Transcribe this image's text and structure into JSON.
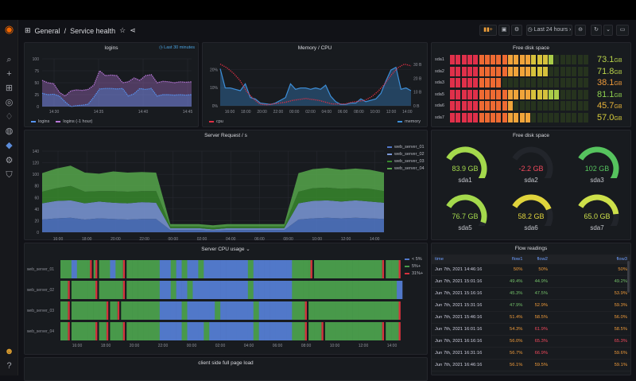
{
  "header": {
    "folder": "General",
    "separator": "/",
    "title": "Service health",
    "time_range": "Last 24 hours"
  },
  "sidebar": {
    "icons": [
      "grafana-logo-icon",
      "search-icon",
      "plus-icon",
      "dashboards-icon",
      "explore-icon",
      "alert-bell-icon",
      "globe-icon",
      "plugin-icon",
      "gear-icon",
      "shield-icon",
      "user-avatar-icon",
      "help-icon"
    ]
  },
  "logins": {
    "title": "logins",
    "time_override": "Last 30 minutes",
    "yticks": [
      "0",
      "25",
      "50",
      "75",
      "100"
    ],
    "xticks": [
      "14:30",
      "14:35",
      "14:40",
      "14:45"
    ],
    "legend": [
      "logins",
      "logins (-1 hour)"
    ],
    "series_logins": [
      28,
      25,
      26,
      22,
      10,
      0,
      2,
      3,
      5,
      20,
      37,
      38,
      38,
      37,
      38,
      22,
      27,
      38,
      36,
      38,
      22,
      25,
      25,
      24,
      25,
      24,
      25
    ],
    "series_logins_1h": [
      55,
      50,
      48,
      30,
      22,
      33,
      35,
      34,
      36,
      45,
      75,
      65,
      66,
      65,
      50,
      52,
      60,
      55,
      65,
      67,
      50,
      53,
      52,
      50,
      52,
      51,
      52
    ]
  },
  "memcpu": {
    "title": "Memory / CPU",
    "yticks_left": [
      "0%",
      "10%",
      "20%"
    ],
    "yticks_right": [
      "0 B",
      "10 B",
      "20 B",
      "30 B"
    ],
    "xticks": [
      "16:00",
      "18:00",
      "20:00",
      "22:00",
      "00:00",
      "02:00",
      "04:00",
      "06:00",
      "08:00",
      "10:00",
      "12:00",
      "14:00"
    ],
    "legend_left": "cpu",
    "legend_right": "memory",
    "memory": [
      27,
      13,
      13,
      12,
      11,
      16,
      6,
      5,
      2,
      1.5,
      1,
      2,
      4,
      6,
      16,
      12,
      13,
      13,
      12,
      13,
      12,
      15,
      7,
      3,
      1,
      1,
      2,
      2,
      5,
      3,
      4,
      5,
      9,
      18,
      26,
      28,
      12,
      13,
      11
    ],
    "cpu": [
      23,
      21,
      18,
      14,
      8,
      4,
      1,
      0.5,
      1,
      1.5,
      2,
      3,
      3.5,
      4,
      3.5,
      3,
      2,
      1,
      1,
      1,
      2,
      2.5,
      3,
      5,
      8,
      12,
      17,
      21,
      23,
      22
    ]
  },
  "bargauge": {
    "title": "Free disk space",
    "max": 100,
    "items": [
      {
        "name": "sda1",
        "value": "73.1",
        "unit": "GB",
        "v": 73.1,
        "color": "#b8d24a"
      },
      {
        "name": "sda2",
        "value": "71.8",
        "unit": "GB",
        "v": 71.8,
        "color": "#b8d24a"
      },
      {
        "name": "sda3",
        "value": "38.1",
        "unit": "GB",
        "v": 38.1,
        "color": "#ee9a3a"
      },
      {
        "name": "sda5",
        "value": "81.1",
        "unit": "GB",
        "v": 81.1,
        "color": "#8fd14f"
      },
      {
        "name": "sda6",
        "value": "45.7",
        "unit": "GB",
        "v": 45.7,
        "color": "#e8b43a"
      },
      {
        "name": "sda7",
        "value": "57.0",
        "unit": "GB",
        "v": 57.0,
        "color": "#d6cc3c"
      }
    ]
  },
  "requests": {
    "title": "Server Request / s",
    "yticks": [
      "0",
      "20",
      "40",
      "60",
      "80",
      "100",
      "120",
      "140"
    ],
    "xticks": [
      "16:00",
      "18:00",
      "20:00",
      "22:00",
      "00:00",
      "02:00",
      "04:00",
      "06:00",
      "08:00",
      "10:00",
      "12:00",
      "14:00"
    ],
    "series": [
      {
        "name": "web_server_01",
        "color": "#5178c9",
        "values": [
          22,
          24,
          25,
          22,
          24,
          23,
          22,
          23,
          23,
          4,
          4,
          4,
          3,
          4,
          4,
          4,
          4,
          4,
          22,
          24,
          25,
          24,
          25,
          24,
          23
        ]
      },
      {
        "name": "web_server_02",
        "color": "#7c99d9",
        "values": [
          28,
          30,
          30,
          28,
          29,
          28,
          28,
          29,
          28,
          3,
          3,
          3,
          2,
          3,
          3,
          3,
          3,
          3,
          28,
          30,
          30,
          29,
          30,
          29,
          28
        ]
      },
      {
        "name": "web_server_03",
        "color": "#37872d",
        "values": [
          20,
          22,
          25,
          20,
          18,
          20,
          20,
          19,
          20,
          3,
          3,
          3,
          3,
          3,
          3,
          3,
          3,
          3,
          20,
          22,
          22,
          22,
          21,
          22,
          20
        ]
      },
      {
        "name": "web_server_04",
        "color": "#56a64b",
        "values": [
          32,
          34,
          35,
          33,
          30,
          34,
          33,
          33,
          32,
          4,
          4,
          4,
          4,
          4,
          4,
          4,
          4,
          4,
          32,
          33,
          34,
          33,
          34,
          33,
          32
        ]
      }
    ]
  },
  "gauges": {
    "title": "Free disk space",
    "max": 110,
    "items": [
      {
        "name": "sda1",
        "value": "83.9 GB",
        "v": 83.9,
        "color": "#a4d94c"
      },
      {
        "name": "sda2",
        "value": "-2.2 GB",
        "v": -2.2,
        "color": "#f2495c"
      },
      {
        "name": "sda3",
        "value": "102 GB",
        "v": 102,
        "color": "#56c45e"
      },
      {
        "name": "sda5",
        "value": "76.7 GB",
        "v": 76.7,
        "color": "#a4d94c"
      },
      {
        "name": "sda6",
        "value": "58.2 GB",
        "v": 58.2,
        "color": "#e0d43c"
      },
      {
        "name": "sda7",
        "value": "65.0 GB",
        "v": 65.0,
        "color": "#cde04a"
      }
    ]
  },
  "cpu_usage": {
    "title": "Server CPU usage",
    "legend": [
      {
        "label": "< 5%",
        "color": "#5178c9"
      },
      {
        "label": "5%+",
        "color": "#48994a"
      },
      {
        "label": "31%+",
        "color": "#d4323c"
      }
    ],
    "xticks": [
      "16:00",
      "18:00",
      "20:00",
      "22:00",
      "00:00",
      "02:00",
      "04:00",
      "06:00",
      "08:00",
      "10:00",
      "12:00",
      "14:00"
    ],
    "rows": [
      {
        "name": "web_server_01",
        "states": "GGBGGRRGGBGRGGGGGGBBGBGBBGBBBBBBBBGBBBBBBBGGGRGGGGGGGGGGGGRGGR"
      },
      {
        "name": "web_server_02",
        "states": "GRGGGGRGGGGRGGGGGGBBGBBGBBBBBBBBBBGBBBBBBBGGGGGGGGGGGGGGGGGGGB"
      },
      {
        "name": "web_server_03",
        "states": "GRGGGGGGRGRGGGGGGGBBBBGBBBBBGBBBBBBGBBBBBBGGRGGGGGGGGGGGGGGGGR"
      },
      {
        "name": "web_server_04",
        "states": "GRGGGGRGRGGRGGGGGGBBBBGBBBGBBBBBBBBGBBBBBBGGRGGRGGGGGGGGGGRGGR"
      }
    ]
  },
  "flow": {
    "title": "Flow readings",
    "columns": [
      "time",
      "flow1",
      "flow2",
      "flow3"
    ],
    "rows": [
      {
        "time": "Jun 7th, 2021 14:46:16",
        "f1": "50%",
        "c1": "#ee9a3a",
        "f2": "50%",
        "c2": "#ee9a3a",
        "f3": "50%",
        "c3": "#ee9a3a"
      },
      {
        "time": "Jun 7th, 2021 15:01:16",
        "f1": "49.4%",
        "c1": "#73bf69",
        "f2": "44.9%",
        "c2": "#73bf69",
        "f3": "49.2%",
        "c3": "#73bf69"
      },
      {
        "time": "Jun 7th, 2021 15:16:16",
        "f1": "45.3%",
        "c1": "#73bf69",
        "f2": "47.5%",
        "c2": "#73bf69",
        "f3": "53.9%",
        "c3": "#ee9a3a"
      },
      {
        "time": "Jun 7th, 2021 15:31:16",
        "f1": "47.9%",
        "c1": "#73bf69",
        "f2": "52.9%",
        "c2": "#ee9a3a",
        "f3": "59.3%",
        "c3": "#ee9a3a"
      },
      {
        "time": "Jun 7th, 2021 15:46:16",
        "f1": "51.4%",
        "c1": "#ee9a3a",
        "f2": "58.5%",
        "c2": "#ee9a3a",
        "f3": "56.0%",
        "c3": "#ee9a3a"
      },
      {
        "time": "Jun 7th, 2021 16:01:16",
        "f1": "54.3%",
        "c1": "#ee9a3a",
        "f2": "61.9%",
        "c2": "#f2495c",
        "f3": "58.5%",
        "c3": "#ee9a3a"
      },
      {
        "time": "Jun 7th, 2021 16:16:16",
        "f1": "56.0%",
        "c1": "#ee9a3a",
        "f2": "65.3%",
        "c2": "#f2495c",
        "f3": "65.3%",
        "c3": "#f2495c"
      },
      {
        "time": "Jun 7th, 2021 16:31:16",
        "f1": "56.7%",
        "c1": "#ee9a3a",
        "f2": "66.9%",
        "c2": "#f2495c",
        "f3": "59.6%",
        "c3": "#ee9a3a"
      },
      {
        "time": "Jun 7th, 2021 16:46:16",
        "f1": "56.1%",
        "c1": "#ee9a3a",
        "f2": "59.5%",
        "c2": "#ee9a3a",
        "f3": "59.1%",
        "c3": "#ee9a3a"
      }
    ]
  },
  "pageload": {
    "title": "client side full page load"
  }
}
